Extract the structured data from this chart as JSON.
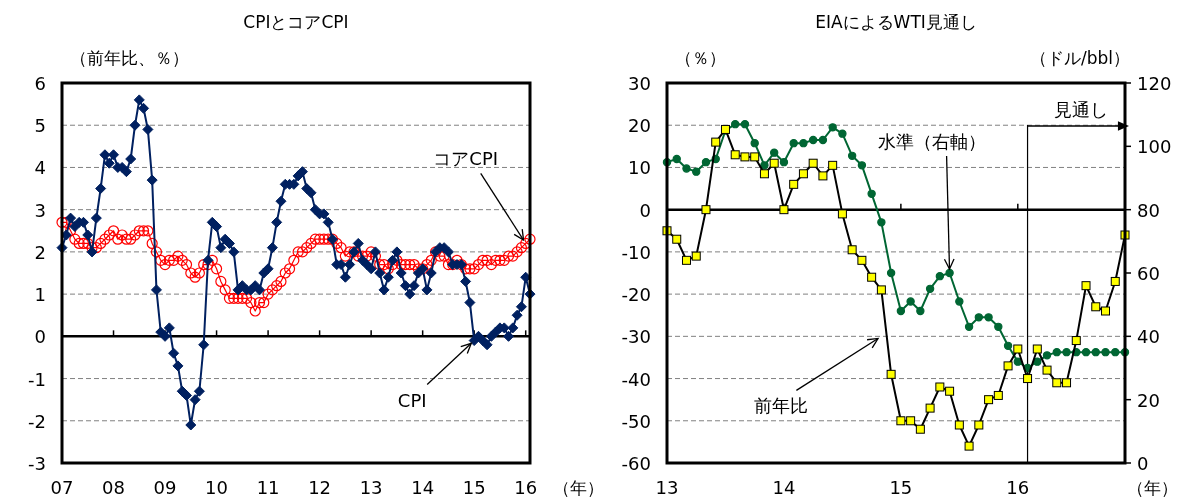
{
  "chart_data": [
    {
      "type": "line",
      "title": "CPIとコアCPI",
      "ylabel": "（前年比、％）",
      "xlabel": "（年）",
      "x": [
        "2007-01",
        "2007-02",
        "2007-03",
        "2007-04",
        "2007-05",
        "2007-06",
        "2007-07",
        "2007-08",
        "2007-09",
        "2007-10",
        "2007-11",
        "2007-12",
        "2008-01",
        "2008-02",
        "2008-03",
        "2008-04",
        "2008-05",
        "2008-06",
        "2008-07",
        "2008-08",
        "2008-09",
        "2008-10",
        "2008-11",
        "2008-12",
        "2009-01",
        "2009-02",
        "2009-03",
        "2009-04",
        "2009-05",
        "2009-06",
        "2009-07",
        "2009-08",
        "2009-09",
        "2009-10",
        "2009-11",
        "2009-12",
        "2010-01",
        "2010-02",
        "2010-03",
        "2010-04",
        "2010-05",
        "2010-06",
        "2010-07",
        "2010-08",
        "2010-09",
        "2010-10",
        "2010-11",
        "2010-12",
        "2011-01",
        "2011-02",
        "2011-03",
        "2011-04",
        "2011-05",
        "2011-06",
        "2011-07",
        "2011-08",
        "2011-09",
        "2011-10",
        "2011-11",
        "2011-12",
        "2012-01",
        "2012-02",
        "2012-03",
        "2012-04",
        "2012-05",
        "2012-06",
        "2012-07",
        "2012-08",
        "2012-09",
        "2012-10",
        "2012-11",
        "2012-12",
        "2013-01",
        "2013-02",
        "2013-03",
        "2013-04",
        "2013-05",
        "2013-06",
        "2013-07",
        "2013-08",
        "2013-09",
        "2013-10",
        "2013-11",
        "2013-12",
        "2014-01",
        "2014-02",
        "2014-03",
        "2014-04",
        "2014-05",
        "2014-06",
        "2014-07",
        "2014-08",
        "2014-09",
        "2014-10",
        "2014-11",
        "2014-12",
        "2015-01",
        "2015-02",
        "2015-03",
        "2015-04",
        "2015-05",
        "2015-06",
        "2015-07",
        "2015-08",
        "2015-09",
        "2015-10",
        "2015-11",
        "2015-12",
        "2016-01",
        "2016-02"
      ],
      "series": [
        {
          "color": "#ff0000",
          "marker": "circle",
          "values": [
            2.7,
            2.7,
            2.5,
            2.3,
            2.2,
            2.2,
            2.2,
            2.1,
            2.1,
            2.2,
            2.3,
            2.4,
            2.5,
            2.3,
            2.4,
            2.3,
            2.3,
            2.4,
            2.5,
            2.5,
            2.5,
            2.2,
            2.0,
            1.8,
            1.7,
            1.8,
            1.8,
            1.9,
            1.8,
            1.7,
            1.5,
            1.4,
            1.5,
            1.7,
            1.7,
            1.8,
            1.6,
            1.3,
            1.1,
            0.9,
            0.9,
            0.9,
            0.9,
            0.9,
            0.8,
            0.6,
            0.8,
            0.8,
            1.0,
            1.1,
            1.2,
            1.3,
            1.5,
            1.6,
            1.8,
            2.0,
            2.0,
            2.1,
            2.2,
            2.3,
            2.3,
            2.3,
            2.3,
            2.3,
            2.2,
            2.1,
            1.9,
            2.0,
            2.0,
            1.9,
            1.9,
            1.9,
            2.0,
            1.9,
            1.7,
            1.7,
            1.6,
            1.7,
            1.8,
            1.7,
            1.7,
            1.7,
            1.7,
            1.6,
            1.6,
            1.7,
            1.8,
            2.0,
            1.9,
            1.9,
            1.7,
            1.7,
            1.8,
            1.7,
            1.6,
            1.6,
            1.6,
            1.7,
            1.8,
            1.8,
            1.7,
            1.8,
            1.8,
            1.8,
            1.9,
            1.9,
            2.0,
            2.1,
            2.2,
            2.3
          ]
        },
        {
          "color": "#002060",
          "marker": "diamond",
          "values": [
            2.1,
            2.4,
            2.8,
            2.6,
            2.7,
            2.7,
            2.4,
            2.0,
            2.8,
            3.5,
            4.3,
            4.1,
            4.3,
            4.0,
            4.0,
            3.9,
            4.2,
            5.0,
            5.6,
            5.4,
            4.9,
            3.7,
            1.1,
            0.1,
            0.0,
            0.2,
            -0.4,
            -0.7,
            -1.3,
            -1.4,
            -2.1,
            -1.5,
            -1.3,
            -0.2,
            1.8,
            2.7,
            2.6,
            2.1,
            2.3,
            2.2,
            2.0,
            1.1,
            1.2,
            1.1,
            1.1,
            1.2,
            1.1,
            1.5,
            1.6,
            2.1,
            2.7,
            3.2,
            3.6,
            3.6,
            3.6,
            3.8,
            3.9,
            3.5,
            3.4,
            3.0,
            2.9,
            2.9,
            2.7,
            2.3,
            1.7,
            1.7,
            1.4,
            1.7,
            2.0,
            2.2,
            1.8,
            1.7,
            1.6,
            2.0,
            1.5,
            1.1,
            1.4,
            1.8,
            2.0,
            1.5,
            1.2,
            1.0,
            1.2,
            1.5,
            1.6,
            1.1,
            1.5,
            2.0,
            2.1,
            2.1,
            2.0,
            1.7,
            1.7,
            1.7,
            1.3,
            0.8,
            -0.1,
            0.0,
            -0.1,
            -0.2,
            0.0,
            0.1,
            0.2,
            0.2,
            0.0,
            0.2,
            0.5,
            0.7,
            1.4,
            1.0
          ]
        }
      ],
      "xlim": [
        "2007-01",
        "2016-02"
      ],
      "xticks": [
        {
          "value": "2007-01",
          "label": "07"
        },
        {
          "value": "2008-01",
          "label": "08"
        },
        {
          "value": "2009-01",
          "label": "09"
        },
        {
          "value": "2010-01",
          "label": "10"
        },
        {
          "value": "2011-01",
          "label": "11"
        },
        {
          "value": "2012-01",
          "label": "12"
        },
        {
          "value": "2013-01",
          "label": "13"
        },
        {
          "value": "2014-01",
          "label": "14"
        },
        {
          "value": "2015-01",
          "label": "15"
        },
        {
          "value": "2016-01",
          "label": "16"
        }
      ],
      "ylim": [
        -3,
        6
      ],
      "yticks": [
        -3,
        -2,
        -1,
        0,
        1,
        2,
        3,
        4,
        5,
        6
      ],
      "grid": "y",
      "annotations": [
        {
          "text": "コアCPI",
          "x": "2016-01",
          "y": 2.2
        },
        {
          "text": "CPI",
          "x": "2015-01",
          "y": -0.1
        }
      ]
    },
    {
      "type": "line",
      "title": "EIAによるWTI見通し",
      "ylabel": "（％）",
      "y2label": "（ドル/bbl）",
      "xlabel": "（年）",
      "x": [
        "2013-01",
        "2013-02",
        "2013-03",
        "2013-04",
        "2013-05",
        "2013-06",
        "2013-07",
        "2013-08",
        "2013-09",
        "2013-10",
        "2013-11",
        "2013-12",
        "2014-01",
        "2014-02",
        "2014-03",
        "2014-04",
        "2014-05",
        "2014-06",
        "2014-07",
        "2014-08",
        "2014-09",
        "2014-10",
        "2014-11",
        "2014-12",
        "2015-01",
        "2015-02",
        "2015-03",
        "2015-04",
        "2015-05",
        "2015-06",
        "2015-07",
        "2015-08",
        "2015-09",
        "2015-10",
        "2015-11",
        "2015-12",
        "2016-01",
        "2016-02",
        "2016-03",
        "2016-04",
        "2016-05",
        "2016-06",
        "2016-07",
        "2016-08",
        "2016-09",
        "2016-10",
        "2016-11",
        "2016-12"
      ],
      "series": [
        {
          "color": "#006633",
          "marker": "circle",
          "axis": "y2",
          "values": [
            95,
            96,
            93,
            92,
            95,
            96,
            105,
            107,
            107,
            101,
            94,
            98,
            95,
            101,
            101,
            102,
            102,
            106,
            104,
            97,
            94,
            85,
            76,
            60,
            48,
            51,
            48,
            55,
            59,
            60,
            51,
            43,
            46,
            46,
            43,
            37,
            32,
            30,
            32,
            34,
            35,
            35,
            35,
            35,
            35,
            35,
            35,
            35
          ]
        },
        {
          "color": "#ffff00",
          "marker": "square",
          "values": [
            -5,
            -7,
            -12,
            -11,
            0,
            16,
            19,
            13,
            12.5,
            12.5,
            8.5,
            11,
            0,
            6,
            8.5,
            11,
            8,
            10.5,
            -1,
            -9.5,
            -12,
            -16,
            -19,
            -39,
            -50,
            -50,
            -52,
            -47,
            -42,
            -43,
            -51,
            -56,
            -51,
            -45,
            -44,
            -37,
            -33,
            -40,
            -33,
            -38,
            -41,
            -41,
            -31,
            -18,
            -23,
            -24,
            -17,
            -6
          ]
        }
      ],
      "xlim": [
        "2013-01",
        "2016-12"
      ],
      "xticks": [
        {
          "value": "2013-01",
          "label": "13"
        },
        {
          "value": "2014-01",
          "label": "14"
        },
        {
          "value": "2015-01",
          "label": "15"
        },
        {
          "value": "2016-01",
          "label": "16"
        }
      ],
      "ylim": [
        -60,
        30
      ],
      "yticks": [
        -60,
        -50,
        -40,
        -30,
        -20,
        -10,
        0,
        10,
        20,
        30
      ],
      "y2lim": [
        0,
        120
      ],
      "y2ticks": [
        0,
        20,
        40,
        60,
        80,
        100,
        120
      ],
      "grid": "y",
      "ref_lines": [
        {
          "axis": "x",
          "value": "2016-02",
          "label": "見通し",
          "color": "#000000"
        }
      ],
      "annotations": [
        {
          "text": "水準（右軸）",
          "x": "2015-06",
          "y": -15
        },
        {
          "text": "前年比",
          "x": "2014-11",
          "y": -30
        }
      ]
    }
  ]
}
